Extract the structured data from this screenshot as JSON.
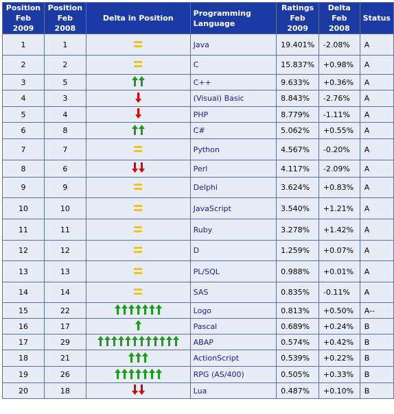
{
  "headers": {
    "pos2009": "Position Feb 2009",
    "pos2008": "Position Feb 2008",
    "delta_pos": "Delta in Position",
    "language": "Programming Language",
    "ratings": "Ratings Feb 2009",
    "delta": "Delta Feb 2008",
    "status": "Status"
  },
  "colors": {
    "header_bg": "#1c3aa4",
    "row_bg": "#e8ecf6",
    "up": "#1f9a1f",
    "down": "#e00000",
    "same": "#f0c419",
    "language_text": "#1a1a9c"
  },
  "rows": [
    {
      "pos2009": "1",
      "pos2008": "1",
      "change": "same",
      "arrows": 0,
      "language": "Java",
      "ratings": "19.401%",
      "delta": "-2.08%",
      "status": "A"
    },
    {
      "pos2009": "2",
      "pos2008": "2",
      "change": "same",
      "arrows": 0,
      "language": "C",
      "ratings": "15.837%",
      "delta": "+0.98%",
      "status": "A"
    },
    {
      "pos2009": "3",
      "pos2008": "5",
      "change": "up",
      "arrows": 2,
      "language": "C++",
      "ratings": "9.633%",
      "delta": "+0.36%",
      "status": "A"
    },
    {
      "pos2009": "4",
      "pos2008": "3",
      "change": "down",
      "arrows": 1,
      "language": "(Visual) Basic",
      "ratings": "8.843%",
      "delta": "-2.76%",
      "status": "A"
    },
    {
      "pos2009": "5",
      "pos2008": "4",
      "change": "down",
      "arrows": 1,
      "language": "PHP",
      "ratings": "8.779%",
      "delta": "-1.11%",
      "status": "A"
    },
    {
      "pos2009": "6",
      "pos2008": "8",
      "change": "up",
      "arrows": 2,
      "language": "C#",
      "ratings": "5.062%",
      "delta": "+0.55%",
      "status": "A"
    },
    {
      "pos2009": "7",
      "pos2008": "7",
      "change": "same",
      "arrows": 0,
      "language": "Python",
      "ratings": "4.567%",
      "delta": "-0.20%",
      "status": "A"
    },
    {
      "pos2009": "8",
      "pos2008": "6",
      "change": "down",
      "arrows": 2,
      "language": "Perl",
      "ratings": "4.117%",
      "delta": "-2.09%",
      "status": "A"
    },
    {
      "pos2009": "9",
      "pos2008": "9",
      "change": "same",
      "arrows": 0,
      "language": "Delphi",
      "ratings": "3.624%",
      "delta": "+0.83%",
      "status": "A"
    },
    {
      "pos2009": "10",
      "pos2008": "10",
      "change": "same",
      "arrows": 0,
      "language": "JavaScript",
      "ratings": "3.540%",
      "delta": "+1.21%",
      "status": "A"
    },
    {
      "pos2009": "11",
      "pos2008": "11",
      "change": "same",
      "arrows": 0,
      "language": "Ruby",
      "ratings": "3.278%",
      "delta": "+1.42%",
      "status": "A"
    },
    {
      "pos2009": "12",
      "pos2008": "12",
      "change": "same",
      "arrows": 0,
      "language": "D",
      "ratings": "1.259%",
      "delta": "+0.07%",
      "status": "A"
    },
    {
      "pos2009": "13",
      "pos2008": "13",
      "change": "same",
      "arrows": 0,
      "language": "PL/SQL",
      "ratings": "0.988%",
      "delta": "+0.01%",
      "status": "A"
    },
    {
      "pos2009": "14",
      "pos2008": "14",
      "change": "same",
      "arrows": 0,
      "language": "SAS",
      "ratings": "0.835%",
      "delta": "-0.11%",
      "status": "A"
    },
    {
      "pos2009": "15",
      "pos2008": "22",
      "change": "up",
      "arrows": 7,
      "language": "Logo",
      "ratings": "0.813%",
      "delta": "+0.50%",
      "status": "A--"
    },
    {
      "pos2009": "16",
      "pos2008": "17",
      "change": "up",
      "arrows": 1,
      "language": "Pascal",
      "ratings": "0.689%",
      "delta": "+0.24%",
      "status": "B"
    },
    {
      "pos2009": "17",
      "pos2008": "29",
      "change": "up",
      "arrows": 12,
      "language": "ABAP",
      "ratings": "0.574%",
      "delta": "+0.42%",
      "status": "B"
    },
    {
      "pos2009": "18",
      "pos2008": "21",
      "change": "up",
      "arrows": 3,
      "language": "ActionScript",
      "ratings": "0.539%",
      "delta": "+0.22%",
      "status": "B"
    },
    {
      "pos2009": "19",
      "pos2008": "26",
      "change": "up",
      "arrows": 7,
      "language": "RPG (AS/400)",
      "ratings": "0.505%",
      "delta": "+0.33%",
      "status": "B"
    },
    {
      "pos2009": "20",
      "pos2008": "18",
      "change": "down",
      "arrows": 2,
      "language": "Lua",
      "ratings": "0.487%",
      "delta": "+0.10%",
      "status": "B"
    }
  ]
}
